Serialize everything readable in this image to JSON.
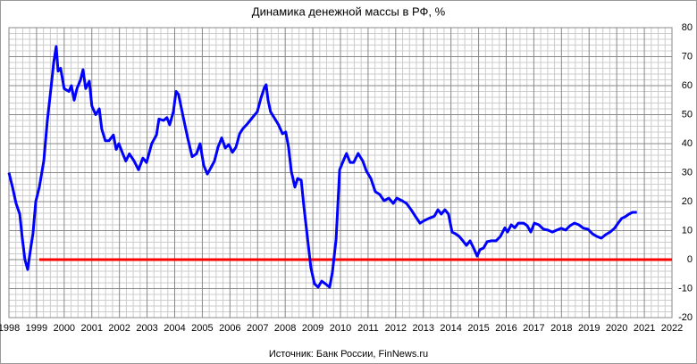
{
  "chart_data": {
    "type": "line",
    "title": "Динамика  денежной  массы в РФ, %",
    "source": "Источник:  Банк России, FinNews.ru",
    "xlim": [
      1998,
      2022
    ],
    "ylim": [
      -20,
      80
    ],
    "xticks": [
      1998,
      1999,
      2000,
      2001,
      2002,
      2003,
      2004,
      2005,
      2006,
      2007,
      2008,
      2009,
      2010,
      2011,
      2012,
      2013,
      2014,
      2015,
      2016,
      2017,
      2018,
      2019,
      2020,
      2021,
      2022
    ],
    "yticks": [
      -20,
      -10,
      0,
      10,
      20,
      30,
      40,
      50,
      60,
      70,
      80
    ],
    "grid": true,
    "reference_line": {
      "value": 0,
      "x": [
        1999.1,
        2022
      ],
      "color": "#ff0000"
    },
    "series": [
      {
        "color": "#0000ff",
        "x": [
          1998.0,
          1998.13,
          1998.26,
          1998.39,
          1998.49,
          1998.58,
          1998.68,
          1998.78,
          1998.87,
          1998.97,
          1999.1,
          1999.26,
          1999.39,
          1999.52,
          1999.62,
          1999.71,
          1999.78,
          1999.87,
          2000.0,
          2000.17,
          2000.26,
          2000.36,
          2000.46,
          2000.59,
          2000.68,
          2000.78,
          2000.91,
          2001.0,
          2001.14,
          2001.27,
          2001.36,
          2001.49,
          2001.62,
          2001.78,
          2001.88,
          2001.98,
          2002.1,
          2002.23,
          2002.36,
          2002.53,
          2002.69,
          2002.85,
          2002.98,
          2003.17,
          2003.34,
          2003.43,
          2003.6,
          2003.72,
          2003.82,
          2003.95,
          2004.05,
          2004.14,
          2004.3,
          2004.47,
          2004.63,
          2004.79,
          2004.92,
          2005.05,
          2005.18,
          2005.31,
          2005.44,
          2005.57,
          2005.7,
          2005.83,
          2005.96,
          2006.09,
          2006.22,
          2006.35,
          2006.47,
          2006.6,
          2006.73,
          2006.86,
          2006.99,
          2007.12,
          2007.25,
          2007.31,
          2007.38,
          2007.47,
          2007.6,
          2007.76,
          2007.9,
          2008.02,
          2008.12,
          2008.22,
          2008.35,
          2008.45,
          2008.58,
          2008.67,
          2008.8,
          2008.93,
          2009.06,
          2009.19,
          2009.32,
          2009.45,
          2009.61,
          2009.71,
          2009.84,
          2009.97,
          2010.1,
          2010.22,
          2010.35,
          2010.48,
          2010.64,
          2010.81,
          2010.94,
          2011.1,
          2011.26,
          2011.42,
          2011.58,
          2011.75,
          2011.91,
          2012.04,
          2012.23,
          2012.39,
          2012.56,
          2012.72,
          2012.88,
          2013.04,
          2013.2,
          2013.4,
          2013.53,
          2013.65,
          2013.78,
          2013.91,
          2014.04,
          2014.17,
          2014.3,
          2014.43,
          2014.56,
          2014.69,
          2014.82,
          2014.95,
          2015.05,
          2015.18,
          2015.31,
          2015.47,
          2015.63,
          2015.79,
          2015.95,
          2016.05,
          2016.18,
          2016.31,
          2016.44,
          2016.63,
          2016.76,
          2016.89,
          2017.02,
          2017.18,
          2017.35,
          2017.51,
          2017.67,
          2017.83,
          2017.99,
          2018.15,
          2018.31,
          2018.47,
          2018.63,
          2018.8,
          2018.96,
          2019.12,
          2019.28,
          2019.44,
          2019.6,
          2019.76,
          2019.92,
          2020.05,
          2020.18,
          2020.31,
          2020.44,
          2020.57,
          2020.73
        ],
        "values": [
          30,
          25,
          19.4,
          15.7,
          7,
          0,
          -3.4,
          3.4,
          9,
          20,
          25,
          34,
          48,
          59,
          68,
          73.5,
          65,
          66,
          59,
          58,
          60,
          55,
          59,
          62,
          65.5,
          59,
          61.5,
          53,
          50,
          52,
          45,
          41,
          41,
          43,
          38,
          40,
          37,
          34,
          36.5,
          34,
          31,
          35,
          33.5,
          40,
          43,
          48.5,
          48,
          49,
          46.5,
          51,
          58,
          57,
          49.5,
          42,
          35.5,
          36.5,
          40,
          32.5,
          29.5,
          31.7,
          34,
          38.8,
          42,
          38.5,
          39.7,
          37,
          38.8,
          43.4,
          45.2,
          46.5,
          48,
          49.5,
          51,
          55.7,
          59.4,
          60.3,
          55,
          51,
          49,
          46.5,
          43.4,
          44,
          38.8,
          30.5,
          25,
          28,
          27.4,
          18.8,
          8,
          -2.8,
          -8.3,
          -9.5,
          -7.4,
          -8.3,
          -9.5,
          -4.3,
          7,
          31,
          34,
          36.6,
          33.5,
          33.5,
          36.6,
          34,
          30.5,
          28,
          23.4,
          22.5,
          20.3,
          21.2,
          19.4,
          21.2,
          20.3,
          19.4,
          17.2,
          14.8,
          12.6,
          13.5,
          14.2,
          15,
          17.2,
          15.7,
          17.2,
          15.7,
          9.5,
          8.9,
          8,
          6.5,
          4.9,
          6.5,
          4,
          1.2,
          3.4,
          4,
          6.2,
          6.5,
          6.5,
          8,
          11,
          9.5,
          12,
          11,
          12.6,
          12.6,
          11.7,
          9.5,
          12.6,
          12,
          10.5,
          10.2,
          9.5,
          10.2,
          10.8,
          10.2,
          11.7,
          12.6,
          12,
          10.8,
          10.5,
          8.9,
          8,
          7.4,
          8.6,
          9.5,
          10.8,
          12.6,
          14.2,
          14.8,
          15.7,
          16.3,
          16.3
        ]
      }
    ]
  }
}
